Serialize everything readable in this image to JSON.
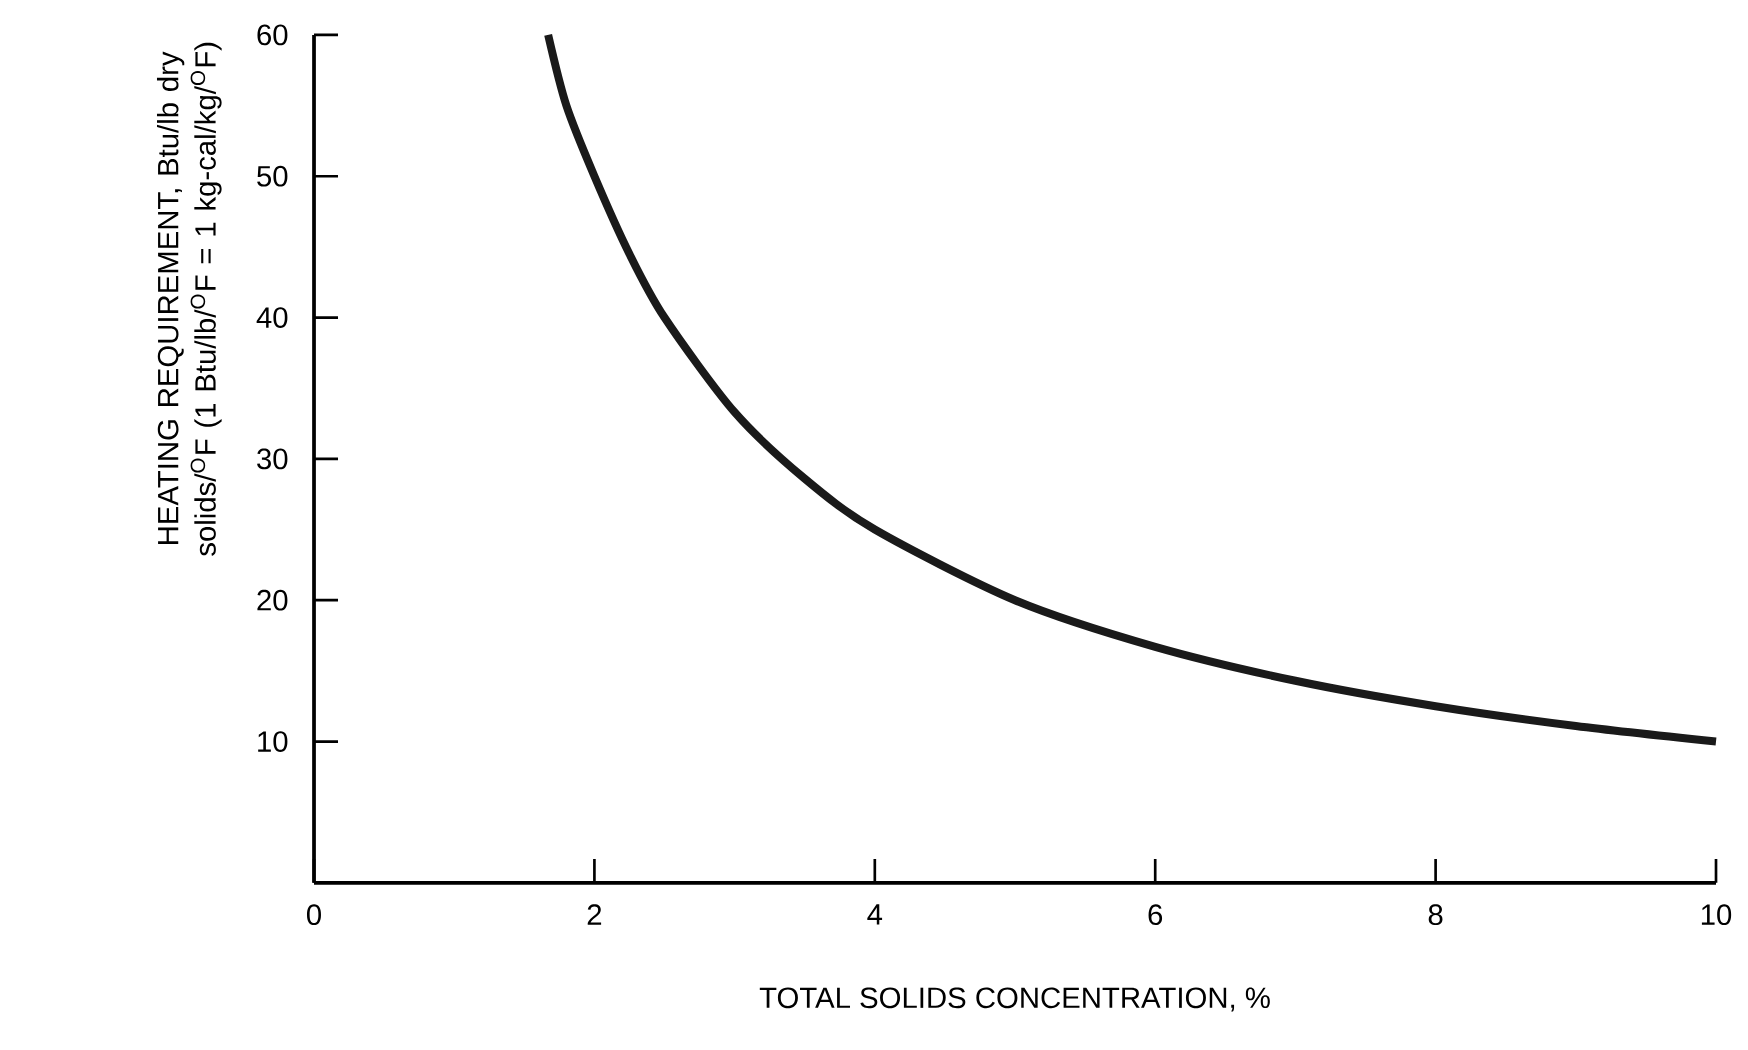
{
  "chart_data": {
    "type": "line",
    "xlabel": "TOTAL SOLIDS CONCENTRATION,  %",
    "ylabel": "HEATING REQUIREMENT, Btu/lb dry solids/$^{O}$F (1 Btu/lb/$^{O}$F = 1 kg-cal/kg/$^{O}$F)",
    "x": [
      1.67,
      1.8,
      2,
      2.25,
      2.5,
      3,
      3.5,
      4,
      5,
      6,
      7,
      8,
      9,
      10
    ],
    "series": [
      {
        "color": "#1a1a1a",
        "values": [
          60,
          55,
          50,
          44.5,
          40,
          33.3,
          28.6,
          25,
          20,
          16.7,
          14.3,
          12.5,
          11.1,
          10
        ]
      }
    ],
    "xlim": [
      0,
      10
    ],
    "ylim": [
      0,
      60
    ],
    "xticks": [
      0,
      2,
      4,
      6,
      8,
      10
    ],
    "yticks": [
      10,
      20,
      30,
      40,
      50,
      60
    ],
    "grid": false,
    "line_style": "solid"
  }
}
